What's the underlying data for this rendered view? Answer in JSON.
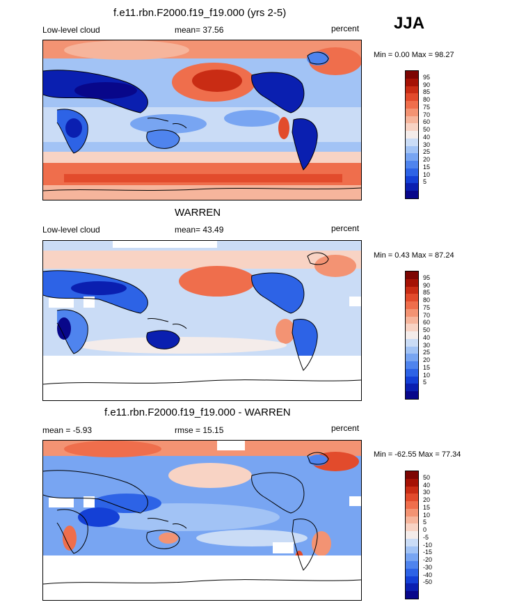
{
  "season": "JJA",
  "palette": [
    "#08078a",
    "#0a1fb0",
    "#1440d6",
    "#2d63e6",
    "#4f84ee",
    "#78a5f2",
    "#a2c3f5",
    "#cadcf6",
    "#f4ecea",
    "#f8d3c4",
    "#f6b59c",
    "#f39373",
    "#ef6e4c",
    "#e24b2c",
    "#c92c14",
    "#a51205",
    "#7d0603"
  ],
  "landmass_color": "#000000",
  "panels": [
    {
      "title": "f.e11.rbn.F2000.f19_f19.000 (yrs 2-5)",
      "left_label": "Low-level cloud",
      "center_label": "mean=  37.56",
      "right_label": "percent",
      "minmax": "Min =   0.00 Max =  98.27",
      "chart_data": {
        "type": "heatmap",
        "title": "f.e11.rbn.F2000.f19_f19.000 (yrs 2-5)",
        "variable": "Low-level cloud",
        "units": "percent",
        "mean": 37.56,
        "min": 0.0,
        "max": 98.27,
        "colorbar_levels": [
          95,
          90,
          85,
          80,
          75,
          70,
          60,
          50,
          40,
          30,
          25,
          20,
          15,
          10,
          5
        ]
      }
    },
    {
      "title": "WARREN",
      "left_label": "Low-level cloud",
      "center_label": "mean=  43.49",
      "right_label": "percent",
      "minmax": "Min =   0.43 Max =  87.24",
      "chart_data": {
        "type": "heatmap",
        "title": "WARREN",
        "variable": "Low-level cloud",
        "units": "percent",
        "mean": 43.49,
        "min": 0.43,
        "max": 87.24,
        "colorbar_levels": [
          95,
          90,
          85,
          80,
          75,
          70,
          60,
          50,
          40,
          30,
          25,
          20,
          15,
          10,
          5
        ]
      }
    },
    {
      "title": "f.e11.rbn.F2000.f19_f19.000 - WARREN",
      "left_label": "mean =  -5.93",
      "center_label": "rmse =  15.15",
      "right_label": "percent",
      "minmax": "Min = -62.55 Max =  77.34",
      "chart_data": {
        "type": "heatmap",
        "title": "f.e11.rbn.F2000.f19_f19.000 - WARREN",
        "units": "percent",
        "mean": -5.93,
        "rmse": 15.15,
        "min": -62.55,
        "max": 77.34,
        "colorbar_levels": [
          50,
          40,
          30,
          20,
          15,
          10,
          5,
          0,
          -5,
          -10,
          -15,
          -20,
          -30,
          -40,
          -50
        ]
      }
    }
  ]
}
